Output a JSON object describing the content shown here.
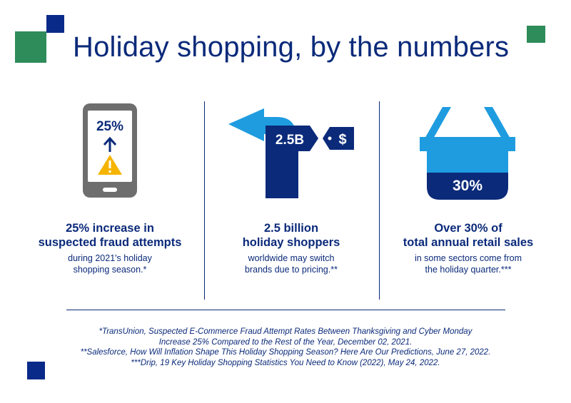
{
  "title": "Holiday shopping, by the numbers",
  "colors": {
    "navy": "#0b2a7a",
    "green": "#2e8b5a",
    "light_blue": "#1f9ce0",
    "yellow": "#f5b400",
    "gray": "#6e6e6e"
  },
  "stats": [
    {
      "icon": "smartphone-warning-icon",
      "icon_text": "25%",
      "headline": [
        "25% increase in",
        "suspected fraud attempts"
      ],
      "sub": [
        "during 2021's holiday",
        "shopping season.*"
      ]
    },
    {
      "icon": "arrow-turn-price-tag-icon",
      "icon_text": "2.5B",
      "tag_text": "$",
      "headline": [
        "2.5 billion",
        "holiday shoppers"
      ],
      "sub": [
        "worldwide may switch",
        "brands due to pricing.**"
      ]
    },
    {
      "icon": "shopping-basket-icon",
      "icon_text": "30%",
      "headline": [
        "Over 30% of",
        "total annual retail sales"
      ],
      "sub": [
        "in some sectors come from",
        "the holiday quarter.***"
      ]
    }
  ],
  "footnotes": [
    "*TransUnion, Suspected E-Commerce Fraud Attempt Rates Between Thanksgiving and Cyber Monday",
    "Increase 25% Compared to the Rest of the Year, December 02, 2021.",
    "**Salesforce, How Will Inflation Shape This Holiday Shopping Season? Here Are Our Predictions, June 27, 2022.",
    "***Drip, 19 Key Holiday Shopping Statistics You Need to Know (2022), May 24, 2022."
  ]
}
